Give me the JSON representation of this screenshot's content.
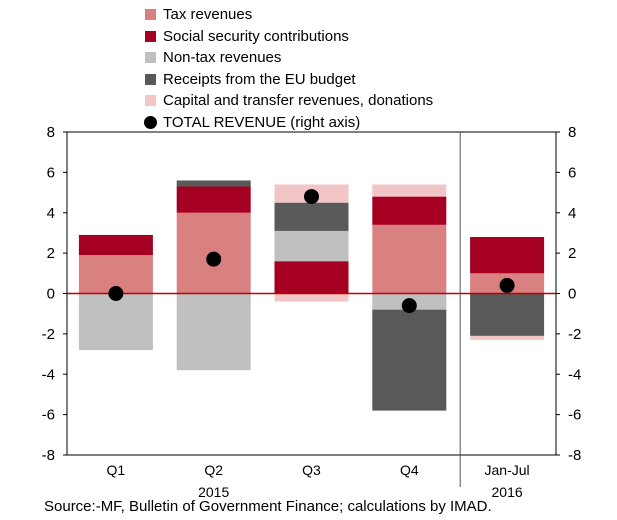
{
  "chart_data": {
    "type": "bar",
    "stacked": true,
    "categories": [
      "Q1",
      "Q2",
      "Q3",
      "Q4",
      "Jan-Jul"
    ],
    "group_labels": [
      "2015",
      "2016"
    ],
    "series": [
      {
        "name": "Tax revenues",
        "color": "#d98080",
        "values": [
          1.9,
          4.0,
          0.0,
          3.4,
          1.0
        ]
      },
      {
        "name": "Social security contributions",
        "color": "#a50021",
        "values": [
          1.0,
          1.3,
          1.6,
          1.4,
          1.8
        ]
      },
      {
        "name": "Non-tax revenues",
        "color": "#c0c0c0",
        "values": [
          -2.8,
          -3.8,
          1.5,
          -0.8,
          0.0
        ]
      },
      {
        "name": "Receipts from the EU budget",
        "color": "#595959",
        "values": [
          0.0,
          0.3,
          1.4,
          -5.0,
          -2.1
        ]
      },
      {
        "name": "Capital and transfer revenues, donations",
        "color": "#f2c6c6",
        "values": [
          0.0,
          0.0,
          0.9,
          0.6,
          -0.2
        ]
      }
    ],
    "extra_negative_segments": [
      {
        "series": "Capital and transfer revenues, donations",
        "category": "Q3",
        "value": -0.4
      },
      {
        "series": "Tax revenues",
        "category": "Q3",
        "value": 0.0
      }
    ],
    "total_series": {
      "name": "TOTAL REVENUE (right axis)",
      "color": "#000000",
      "values": [
        0.0,
        1.7,
        4.8,
        -0.6,
        0.4
      ]
    },
    "ylim": [
      -8,
      8
    ],
    "y_ticks": [
      -8,
      -6,
      -4,
      -2,
      0,
      2,
      4,
      6,
      8
    ],
    "y2lim": [
      -8,
      8
    ],
    "zero_line_color": "#c00000",
    "legend_position": "top"
  },
  "source_text": "Source:-MF, Bulletin of Government Finance; calculations by IMAD."
}
